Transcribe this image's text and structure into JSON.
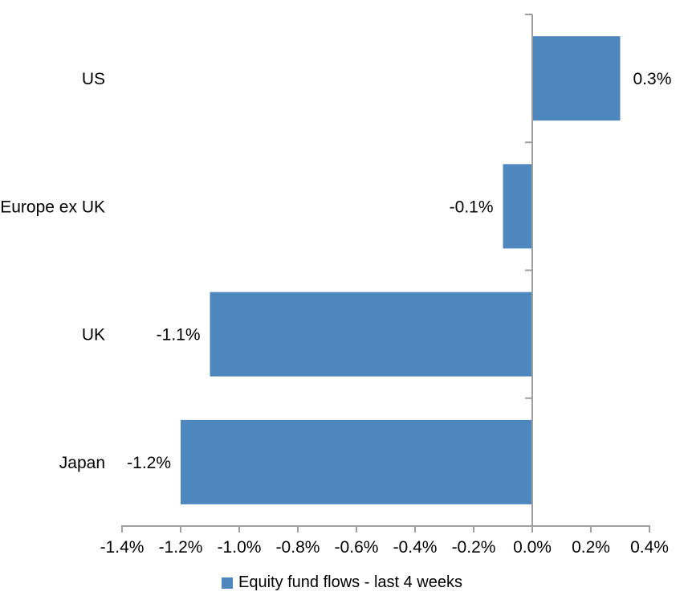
{
  "chart_data": {
    "type": "bar",
    "orientation": "horizontal",
    "title": "",
    "xlabel": "",
    "ylabel": "",
    "categories": [
      "US",
      "Europe ex UK",
      "UK",
      "Japan"
    ],
    "values": [
      0.3,
      -0.1,
      -1.1,
      -1.2
    ],
    "value_labels": [
      "0.3%",
      "-0.1%",
      "-1.1%",
      "-1.2%"
    ],
    "series_name": "Equity fund flows - last 4 weeks",
    "x_ticks": [
      -1.4,
      -1.2,
      -1.0,
      -0.8,
      -0.6,
      -0.4,
      -0.2,
      0.0,
      0.2,
      0.4
    ],
    "x_tick_labels": [
      "-1.4%",
      "-1.2%",
      "-1.0%",
      "-0.8%",
      "-0.6%",
      "-0.4%",
      "-0.2%",
      "0.0%",
      "0.2%",
      "0.4%"
    ],
    "xlim": [
      -1.4,
      0.4
    ],
    "grid": false,
    "legend_position": "bottom",
    "bar_color": "#4D87BE",
    "axis_color": "#9E9E9E",
    "text_color": "#000000"
  },
  "legend": {
    "items": [
      {
        "label": "Equity fund flows - last 4 weeks",
        "color": "#4D87BE"
      }
    ]
  }
}
